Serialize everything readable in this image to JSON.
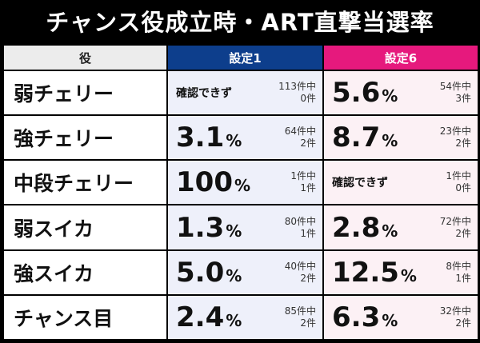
{
  "title": "チャンス役成立時・ART直撃当選率",
  "header": {
    "role": "役",
    "s1": "設定1",
    "s6": "設定6"
  },
  "rows": [
    {
      "role": "弱チェリー",
      "s1": {
        "text": "確認できず",
        "count": "113件中",
        "hits": "0件"
      },
      "s6": {
        "num": "5.6",
        "pct": "%",
        "count": "54件中",
        "hits": "3件"
      }
    },
    {
      "role": "強チェリー",
      "s1": {
        "num": "3.1",
        "pct": "%",
        "count": "64件中",
        "hits": "2件"
      },
      "s6": {
        "num": "8.7",
        "pct": "%",
        "count": "23件中",
        "hits": "2件"
      }
    },
    {
      "role": "中段チェリー",
      "s1": {
        "num": "100",
        "pct": "%",
        "count": "1件中",
        "hits": "1件"
      },
      "s6": {
        "text": "確認できず",
        "count": "1件中",
        "hits": "0件"
      }
    },
    {
      "role": "弱スイカ",
      "s1": {
        "num": "1.3",
        "pct": "%",
        "count": "80件中",
        "hits": "1件"
      },
      "s6": {
        "num": "2.8",
        "pct": "%",
        "count": "72件中",
        "hits": "2件"
      }
    },
    {
      "role": "強スイカ",
      "s1": {
        "num": "5.0",
        "pct": "%",
        "count": "40件中",
        "hits": "2件"
      },
      "s6": {
        "num": "12.5",
        "pct": "%",
        "count": "8件中",
        "hits": "1件"
      }
    },
    {
      "role": "チャンス目",
      "s1": {
        "num": "2.4",
        "pct": "%",
        "count": "85件中",
        "hits": "2件"
      },
      "s6": {
        "num": "6.3",
        "pct": "%",
        "count": "32件中",
        "hits": "2件"
      }
    }
  ]
}
